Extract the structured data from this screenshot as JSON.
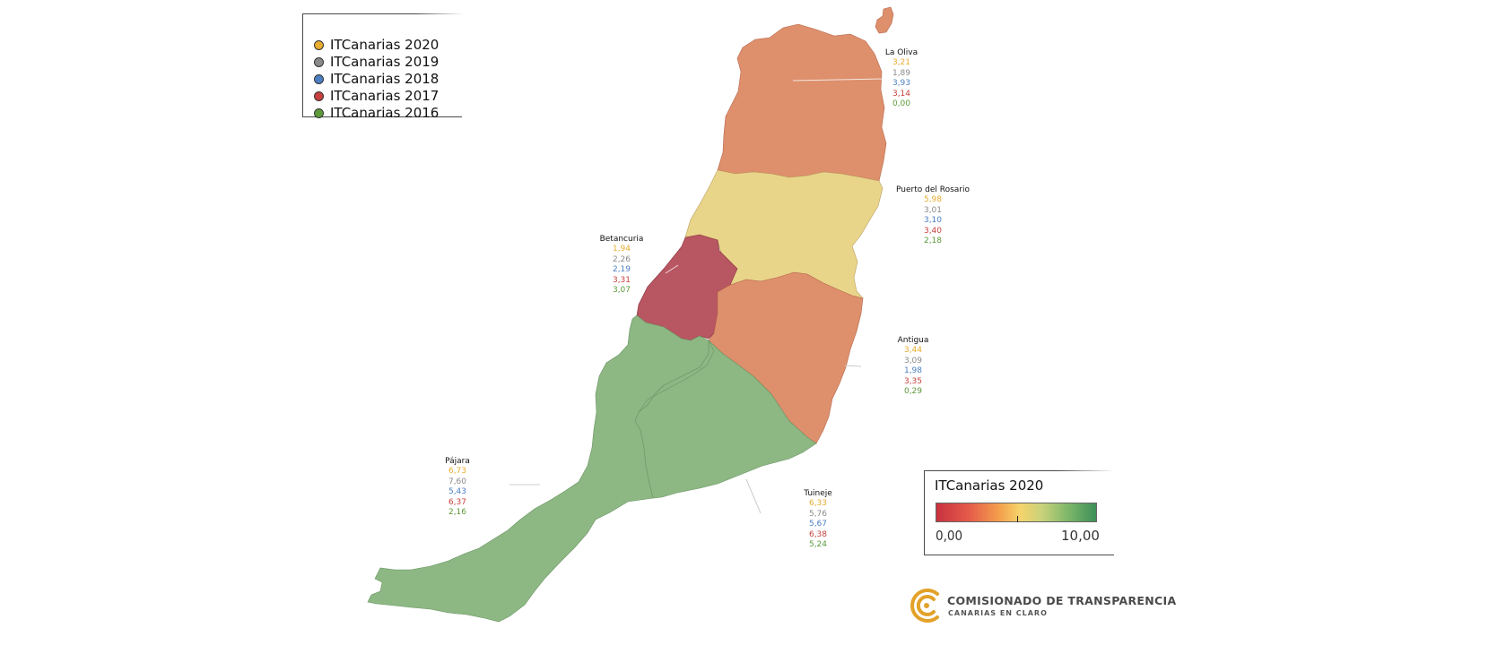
{
  "legend": {
    "items": [
      {
        "label": "ITCanarias 2020",
        "color": "#e8ac2e"
      },
      {
        "label": "ITCanarias 2019",
        "color": "#8a8a8a"
      },
      {
        "label": "ITCanarias 2018",
        "color": "#4c7fc2"
      },
      {
        "label": "ITCanarias 2017",
        "color": "#c8413e"
      },
      {
        "label": "ITCanarias 2016",
        "color": "#5c9a3a"
      }
    ]
  },
  "municipalities": [
    {
      "name": "La Oliva",
      "fill": "#de8f6c",
      "values": [
        "3,21",
        "1,89",
        "3,93",
        "3,14",
        "0,00"
      ]
    },
    {
      "name": "Puerto del Rosario",
      "fill": "#e9d58a",
      "values": [
        "5,98",
        "3,01",
        "3,10",
        "3,40",
        "2,18"
      ]
    },
    {
      "name": "Betancuria",
      "fill": "#b85662",
      "values": [
        "1,94",
        "2,26",
        "2,19",
        "3,31",
        "3,07"
      ]
    },
    {
      "name": "Antigua",
      "fill": "#de8f6c",
      "values": [
        "3,44",
        "3,09",
        "1,98",
        "3,35",
        "0,29"
      ]
    },
    {
      "name": "Pájara",
      "fill": "#8db783",
      "values": [
        "6,73",
        "7,60",
        "5,43",
        "6,37",
        "2,16"
      ]
    },
    {
      "name": "Tuineje",
      "fill": "#8db783",
      "values": [
        "6,33",
        "5,76",
        "5,67",
        "6,38",
        "5,24"
      ]
    }
  ],
  "scale": {
    "title": "ITCanarias 2020",
    "min_label": "0,00",
    "max_label": "10,00"
  },
  "logo": {
    "title": "COMISIONADO DE TRANSPARENCIA",
    "subtitle": "CANARIAS EN CLARO",
    "color": "#e2a22a"
  }
}
